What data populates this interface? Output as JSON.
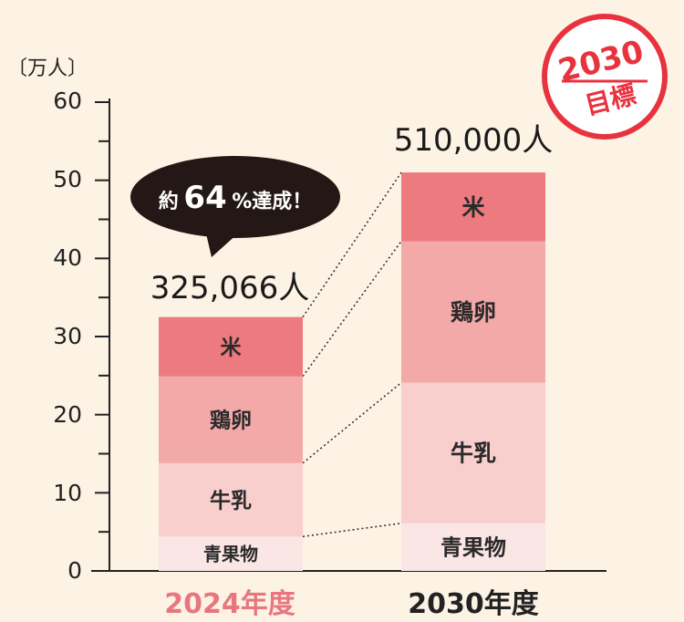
{
  "chart_data": {
    "type": "bar",
    "stacked": true,
    "unit_label": "〔万人〕",
    "categories": [
      "2024年度",
      "2030年度"
    ],
    "category_colors": [
      "#e8767e",
      "#222222"
    ],
    "ylim": [
      0,
      60
    ],
    "yticks": [
      "0",
      "10",
      "20",
      "30",
      "40",
      "50",
      "60"
    ],
    "series": [
      {
        "name": "青果物",
        "values": [
          4.4,
          6.1
        ],
        "color": "#fbe6e6"
      },
      {
        "name": "牛乳",
        "values": [
          9.4,
          18.0
        ],
        "color": "#f8cfcd"
      },
      {
        "name": "鶏卵",
        "values": [
          11.1,
          18.1
        ],
        "color": "#f2a9a8"
      },
      {
        "name": "米",
        "values": [
          7.6,
          8.8
        ],
        "color": "#ec7a7e"
      }
    ],
    "totals": [
      "325,066人",
      "510,000人"
    ],
    "callout": {
      "pre": "約",
      "num": "64",
      "post": "%達成！"
    },
    "stamp": {
      "year": "2030",
      "label": "目標",
      "color": "#e8333e"
    }
  }
}
